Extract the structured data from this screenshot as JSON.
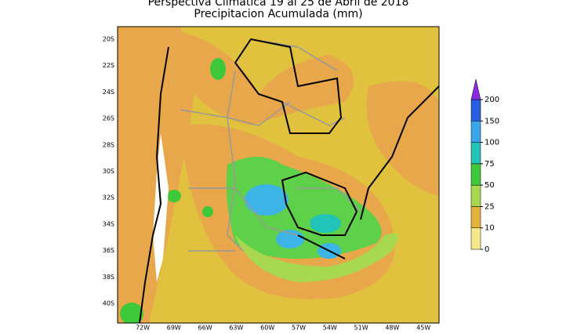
{
  "header": {
    "title": "Perspectiva Climatica 19 al 25 de Abril de 2018",
    "subtitle": "Precipitacion Acumulada (mm)"
  },
  "map": {
    "latitude_labels": [
      "20S",
      "22S",
      "24S",
      "26S",
      "28S",
      "30S",
      "32S",
      "34S",
      "36S",
      "38S",
      "40S"
    ],
    "longitude_labels": [
      "72W",
      "69W",
      "66W",
      "63W",
      "60W",
      "57W",
      "54W",
      "51W",
      "48W",
      "45W"
    ]
  },
  "colorbar": {
    "levels": [
      0,
      10,
      25,
      50,
      75,
      100,
      150,
      200
    ],
    "colors": [
      "#f4e98a",
      "#e2b33c",
      "#a8d850",
      "#3ec83a",
      "#22c4b8",
      "#3aa6ee",
      "#2a5ee0"
    ],
    "extend_color": "#8a2be2"
  }
}
